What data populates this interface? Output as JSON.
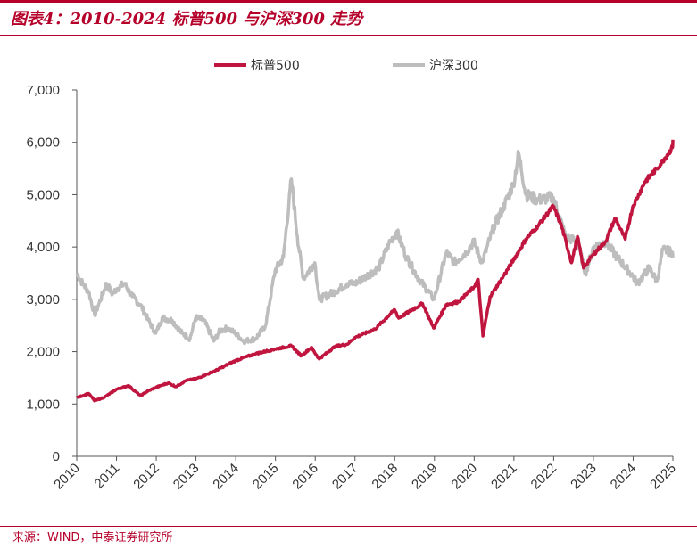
{
  "header": {
    "title": "图表4：2010-2024 标普500 与沪深300 走势"
  },
  "footer": {
    "source": "来源：WIND，中泰证券研究所"
  },
  "colors": {
    "accent": "#b5002a",
    "sp500": "#c0153e",
    "csi300": "#bdbdbd"
  },
  "chart_data": {
    "type": "line",
    "title": "2010-2024 标普500 与沪深300 走势",
    "xlabel": "",
    "ylabel": "",
    "x_start": 2010.0,
    "x_end": 2025.0,
    "x_ticks": [
      "2010",
      "2011",
      "2012",
      "2013",
      "2014",
      "2015",
      "2016",
      "2017",
      "2018",
      "2019",
      "2020",
      "2021",
      "2022",
      "2023",
      "2024",
      "2025"
    ],
    "ylim": [
      0,
      7000
    ],
    "y_ticks": [
      0,
      1000,
      2000,
      3000,
      4000,
      5000,
      6000,
      7000
    ],
    "y_tick_labels": [
      "0",
      "1,000",
      "2,000",
      "3,000",
      "4,000",
      "5,000",
      "6,000",
      "7,000"
    ],
    "legend_position": "top-center",
    "series": [
      {
        "name": "标普500",
        "points": [
          [
            2010.0,
            1120
          ],
          [
            2010.3,
            1200
          ],
          [
            2010.45,
            1060
          ],
          [
            2010.7,
            1130
          ],
          [
            2011.0,
            1280
          ],
          [
            2011.3,
            1350
          ],
          [
            2011.6,
            1160
          ],
          [
            2011.8,
            1250
          ],
          [
            2012.0,
            1320
          ],
          [
            2012.3,
            1400
          ],
          [
            2012.5,
            1330
          ],
          [
            2012.75,
            1450
          ],
          [
            2013.0,
            1480
          ],
          [
            2013.5,
            1640
          ],
          [
            2014.0,
            1830
          ],
          [
            2014.5,
            1960
          ],
          [
            2015.0,
            2050
          ],
          [
            2015.4,
            2110
          ],
          [
            2015.65,
            1920
          ],
          [
            2015.9,
            2080
          ],
          [
            2016.1,
            1860
          ],
          [
            2016.5,
            2100
          ],
          [
            2016.8,
            2140
          ],
          [
            2017.0,
            2270
          ],
          [
            2017.5,
            2430
          ],
          [
            2018.0,
            2800
          ],
          [
            2018.1,
            2640
          ],
          [
            2018.7,
            2920
          ],
          [
            2018.98,
            2450
          ],
          [
            2019.3,
            2900
          ],
          [
            2019.6,
            2950
          ],
          [
            2019.99,
            3230
          ],
          [
            2020.1,
            3380
          ],
          [
            2020.22,
            2300
          ],
          [
            2020.4,
            3050
          ],
          [
            2020.7,
            3400
          ],
          [
            2020.99,
            3750
          ],
          [
            2021.3,
            4150
          ],
          [
            2021.6,
            4400
          ],
          [
            2021.99,
            4780
          ],
          [
            2022.2,
            4400
          ],
          [
            2022.45,
            3700
          ],
          [
            2022.6,
            4200
          ],
          [
            2022.75,
            3600
          ],
          [
            2022.99,
            3850
          ],
          [
            2023.3,
            4100
          ],
          [
            2023.55,
            4550
          ],
          [
            2023.8,
            4150
          ],
          [
            2023.99,
            4770
          ],
          [
            2024.3,
            5250
          ],
          [
            2024.6,
            5500
          ],
          [
            2024.99,
            5900
          ],
          [
            2025.0,
            6050
          ]
        ],
        "stroke_width": 3.5
      },
      {
        "name": "沪深300",
        "points": [
          [
            2010.0,
            3500
          ],
          [
            2010.15,
            3300
          ],
          [
            2010.3,
            3150
          ],
          [
            2010.45,
            2700
          ],
          [
            2010.55,
            2900
          ],
          [
            2010.75,
            3300
          ],
          [
            2010.9,
            3100
          ],
          [
            2011.0,
            3200
          ],
          [
            2011.2,
            3300
          ],
          [
            2011.4,
            3050
          ],
          [
            2011.6,
            2900
          ],
          [
            2011.8,
            2600
          ],
          [
            2011.99,
            2350
          ],
          [
            2012.15,
            2650
          ],
          [
            2012.4,
            2600
          ],
          [
            2012.65,
            2350
          ],
          [
            2012.85,
            2250
          ],
          [
            2012.99,
            2650
          ],
          [
            2013.2,
            2600
          ],
          [
            2013.45,
            2200
          ],
          [
            2013.6,
            2400
          ],
          [
            2013.8,
            2450
          ],
          [
            2013.99,
            2350
          ],
          [
            2014.2,
            2200
          ],
          [
            2014.5,
            2250
          ],
          [
            2014.75,
            2500
          ],
          [
            2014.99,
            3550
          ],
          [
            2015.2,
            3800
          ],
          [
            2015.4,
            5300
          ],
          [
            2015.55,
            4200
          ],
          [
            2015.7,
            3400
          ],
          [
            2015.99,
            3700
          ],
          [
            2016.1,
            3000
          ],
          [
            2016.5,
            3150
          ],
          [
            2016.8,
            3300
          ],
          [
            2017.0,
            3300
          ],
          [
            2017.3,
            3450
          ],
          [
            2017.6,
            3600
          ],
          [
            2017.85,
            4050
          ],
          [
            2018.05,
            4300
          ],
          [
            2018.3,
            3800
          ],
          [
            2018.6,
            3400
          ],
          [
            2018.99,
            3000
          ],
          [
            2019.3,
            3900
          ],
          [
            2019.5,
            3700
          ],
          [
            2019.8,
            3900
          ],
          [
            2019.99,
            4100
          ],
          [
            2020.2,
            3700
          ],
          [
            2020.5,
            4400
          ],
          [
            2020.7,
            4700
          ],
          [
            2020.99,
            5200
          ],
          [
            2021.12,
            5800
          ],
          [
            2021.3,
            5000
          ],
          [
            2021.6,
            4900
          ],
          [
            2021.99,
            4950
          ],
          [
            2022.3,
            4200
          ],
          [
            2022.6,
            4100
          ],
          [
            2022.8,
            3500
          ],
          [
            2023.0,
            4000
          ],
          [
            2023.3,
            4100
          ],
          [
            2023.6,
            3800
          ],
          [
            2023.99,
            3450
          ],
          [
            2024.1,
            3300
          ],
          [
            2024.4,
            3600
          ],
          [
            2024.6,
            3350
          ],
          [
            2024.75,
            3950
          ],
          [
            2024.99,
            3900
          ],
          [
            2025.0,
            3800
          ]
        ],
        "stroke_width": 3.5
      }
    ]
  }
}
